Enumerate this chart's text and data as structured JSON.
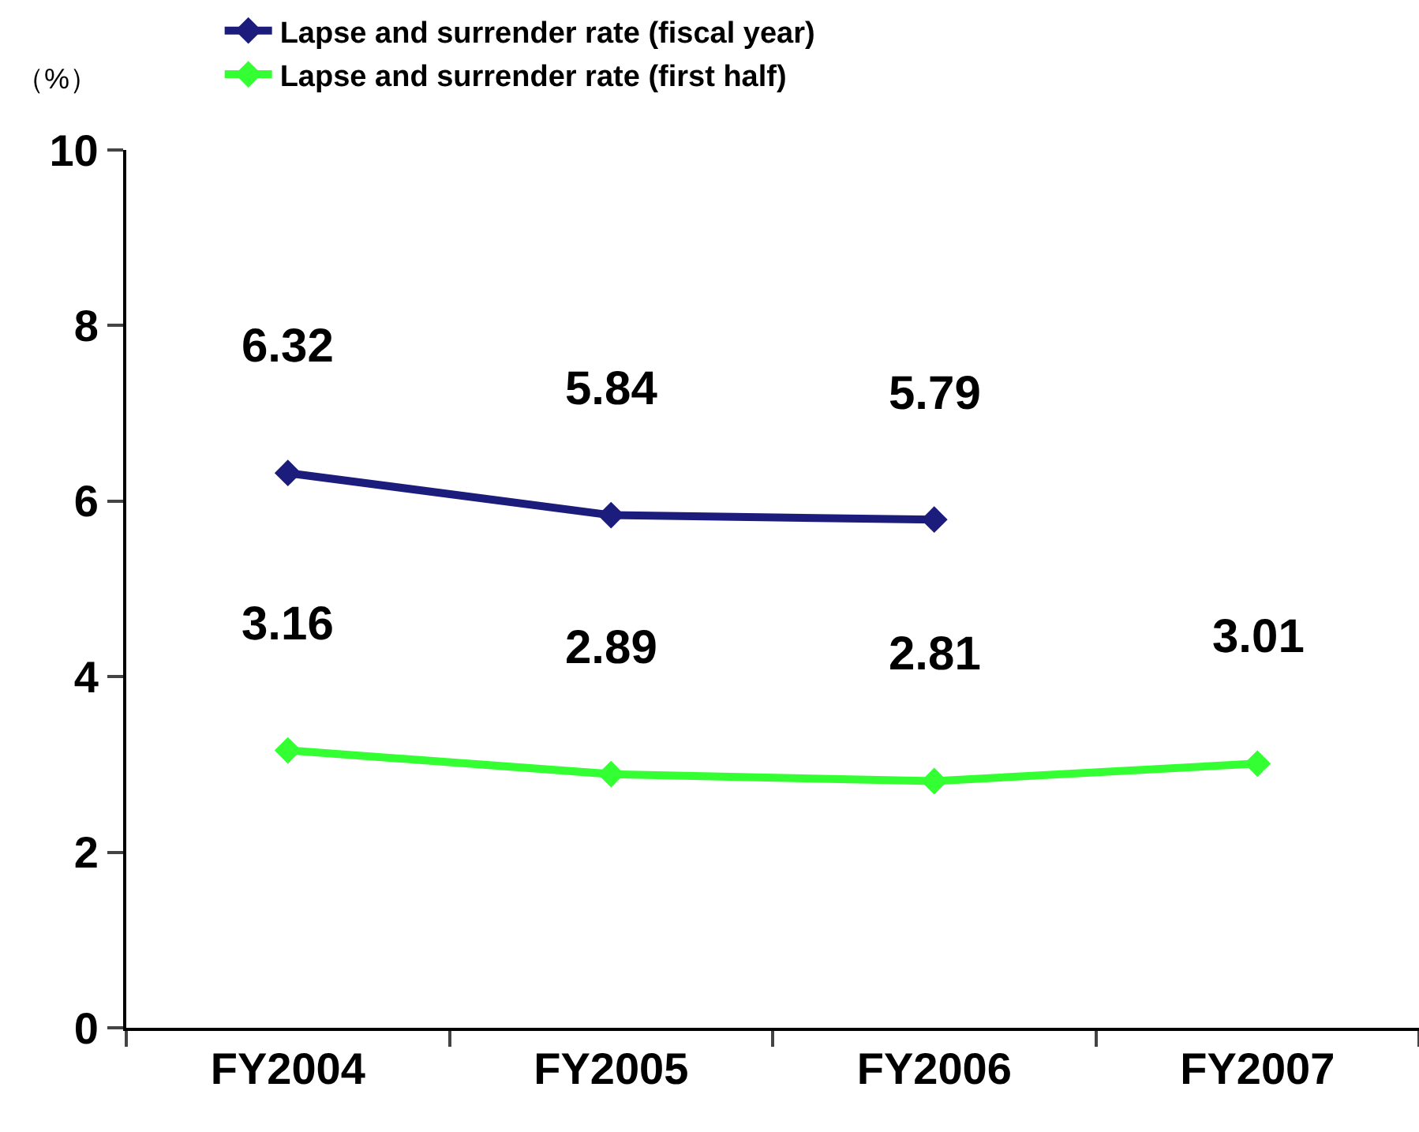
{
  "chart_data": {
    "type": "line",
    "ylabel": "（%）",
    "categories": [
      "FY2004",
      "FY2005",
      "FY2006",
      "FY2007"
    ],
    "series": [
      {
        "name": "Lapse and surrender rate (fiscal year)",
        "color": "#1c1c7c",
        "values": [
          6.32,
          5.84,
          5.79,
          null
        ]
      },
      {
        "name": "Lapse and surrender rate (first half)",
        "color": "#33ff33",
        "values": [
          3.16,
          2.89,
          2.81,
          3.01
        ]
      }
    ],
    "ylim": [
      0,
      10
    ],
    "yticks": [
      0,
      2,
      4,
      6,
      8,
      10
    ],
    "grid": false,
    "legend": "top",
    "marker": "diamond",
    "line_style": "solid",
    "data_labels": true
  }
}
